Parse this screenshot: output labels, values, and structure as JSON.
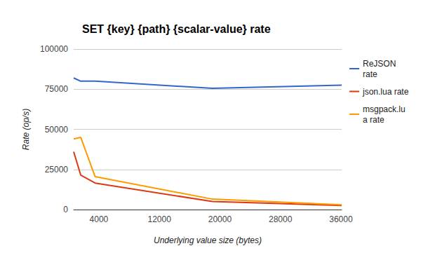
{
  "chart_data": {
    "type": "line",
    "title": "SET {key} {path} {scalar-value} rate",
    "xlabel": "Underlying value size (bytes)",
    "ylabel": "Rate (op/s)",
    "x": [
      670,
      1600,
      3500,
      19000,
      36100
    ],
    "series": [
      {
        "name": "ReJSON rate",
        "color": "#3366cc",
        "values": [
          82000,
          80000,
          80000,
          75500,
          77500
        ]
      },
      {
        "name": "json.lua rate",
        "color": "#dc3912",
        "values": [
          36000,
          21500,
          16500,
          5000,
          2500
        ]
      },
      {
        "name": "msgpack.lua rate",
        "color": "#ff9900",
        "values": [
          44000,
          45000,
          20500,
          6500,
          3000
        ]
      }
    ],
    "xlim": [
      670,
      36100
    ],
    "xticks": [
      4000,
      12000,
      20000,
      28000,
      36000
    ],
    "ylim": [
      0,
      100000
    ],
    "yticks": [
      0,
      25000,
      50000,
      75000,
      100000
    ],
    "grid": true,
    "legend": "right"
  }
}
